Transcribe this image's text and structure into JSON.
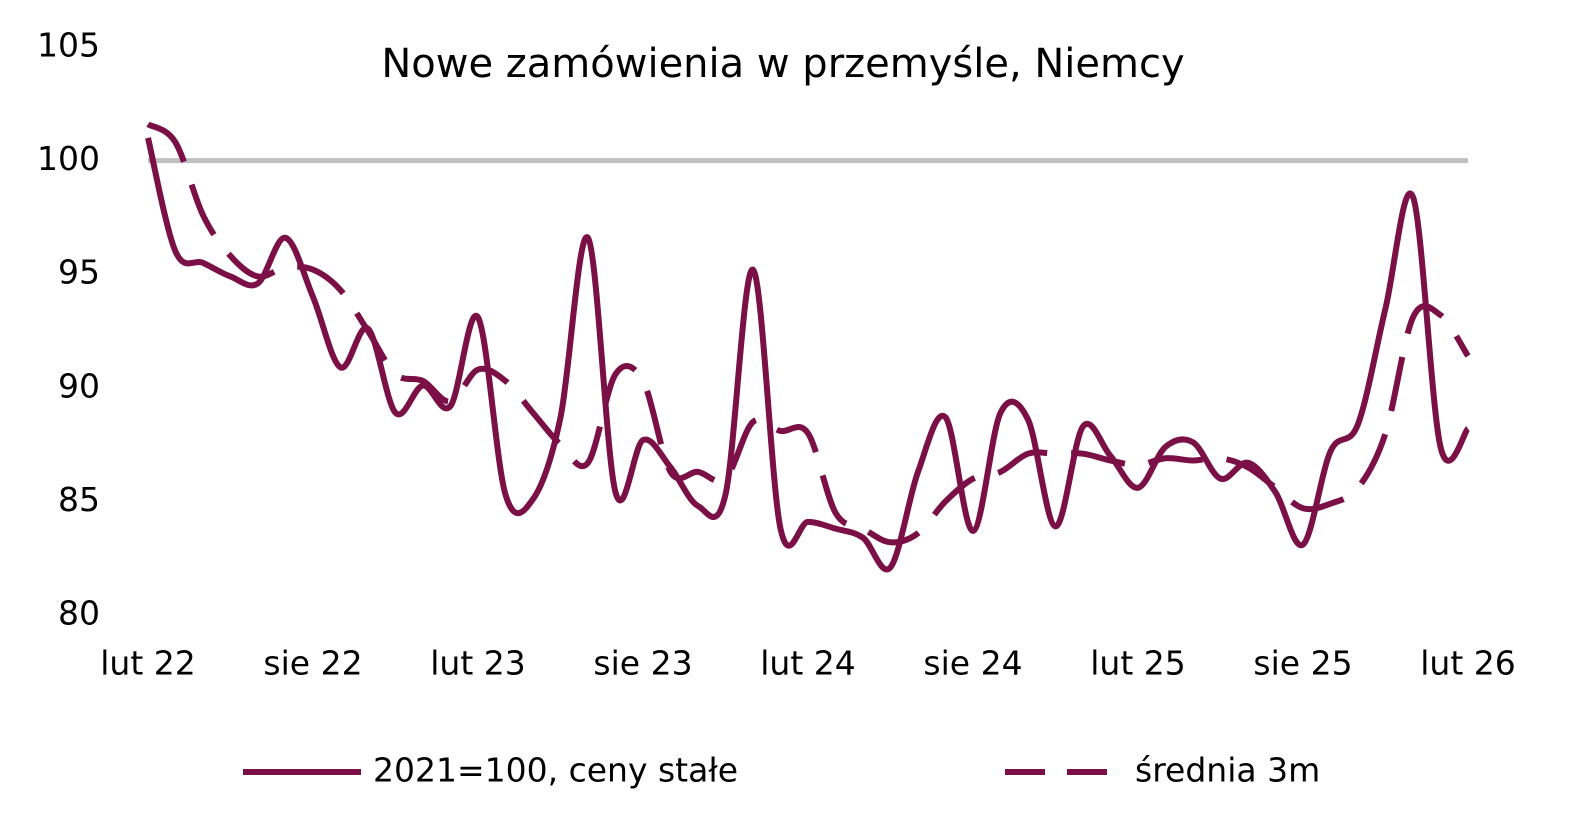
{
  "chart_data": {
    "type": "line",
    "title": "Nowe zamówienia w przemyśle, Niemcy",
    "categories": [
      "lut 22",
      null,
      null,
      null,
      null,
      null,
      "sie 22",
      null,
      null,
      null,
      null,
      null,
      "lut 23",
      null,
      null,
      null,
      null,
      null,
      "sie 23",
      null,
      null,
      null,
      null,
      null,
      "lut 24",
      null,
      null,
      null,
      null,
      null,
      "sie 24",
      null,
      null,
      null,
      null,
      null,
      "lut 25",
      null,
      null,
      null,
      null,
      null,
      "sie 25",
      null,
      null,
      null,
      null,
      null,
      "lut 26"
    ],
    "series": [
      {
        "name": "2021=100, ceny stałe",
        "color": "#7b1046",
        "dash": false,
        "values": [
          101.0,
          96.0,
          95.5,
          94.9,
          94.6,
          96.6,
          94.0,
          90.9,
          92.6,
          88.9,
          90.1,
          89.2,
          93.1,
          85.3,
          85.1,
          88.7,
          96.6,
          85.4,
          87.7,
          86.5,
          84.8,
          85.3,
          95.2,
          83.8,
          84.1,
          83.8,
          83.4,
          82.1,
          86.3,
          88.7,
          83.7,
          88.9,
          88.6,
          83.9,
          88.3,
          87.0,
          85.6,
          87.4,
          87.6,
          86.0,
          86.7,
          85.4,
          83.1,
          87.2,
          88.4,
          93.5,
          98.4,
          87.4,
          88.2
        ]
      },
      {
        "name": "średnia 3m",
        "color": "#7b1046",
        "dash": true,
        "values": [
          101.6,
          100.8,
          97.6,
          95.8,
          94.9,
          95.3,
          95.2,
          94.3,
          92.5,
          90.6,
          90.3,
          89.4,
          90.8,
          90.3,
          88.9,
          87.5,
          86.7,
          90.6,
          90.3,
          86.3,
          86.3,
          86.0,
          88.5,
          88.1,
          88.0,
          84.5,
          83.8,
          83.2,
          83.6,
          85.0,
          86.0,
          86.3,
          87.1,
          87.1,
          87.1,
          86.8,
          86.6,
          86.9,
          86.8,
          86.9,
          86.5,
          85.6,
          84.7,
          84.9,
          85.6,
          88.0,
          93.1,
          93.2,
          91.4
        ]
      }
    ],
    "reference_line": {
      "value": 100,
      "color": "#bfbfbf"
    },
    "ylim": [
      80,
      105
    ],
    "yticks": [
      80,
      85,
      90,
      95,
      100,
      105
    ],
    "legend": "bottom"
  }
}
